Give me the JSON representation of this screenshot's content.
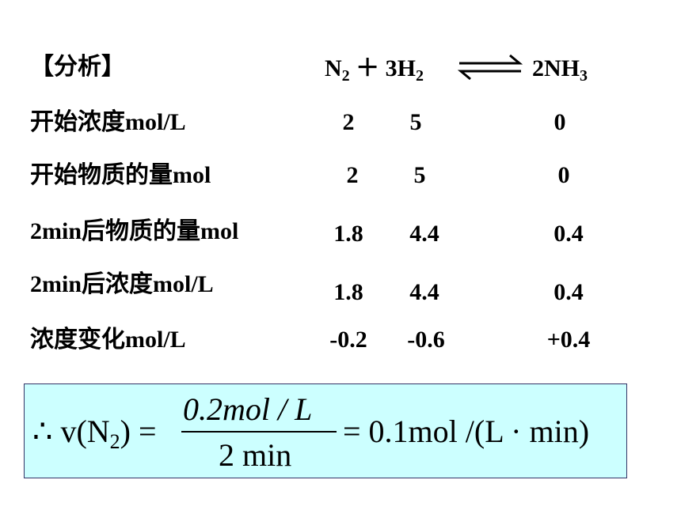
{
  "header": {
    "title": "【分析】",
    "equation": {
      "parts": [
        "N",
        "2",
        " ＋ 3H",
        "2",
        "2NH",
        "3"
      ]
    }
  },
  "table": {
    "rows": [
      [
        "开始浓度mol/L",
        "2",
        "5",
        "0"
      ],
      [
        "开始物质的量mol",
        "2",
        "5",
        "0"
      ],
      [
        "2min后物质的量mol",
        "1.8",
        "4.4",
        "0.4"
      ],
      [
        "2min后浓度mol/L",
        "1.8",
        "4.4",
        "0.4"
      ],
      [
        "浓度变化mol/L",
        "-0.2",
        "-0.6",
        "+0.4"
      ]
    ]
  },
  "formula": {
    "left": "∴ v(N",
    "left_sub": "2",
    "left_end": ") =",
    "numerator": "0.2mol / L",
    "denominator": "2 min",
    "right": "= 0.1mol /(L · min)"
  }
}
